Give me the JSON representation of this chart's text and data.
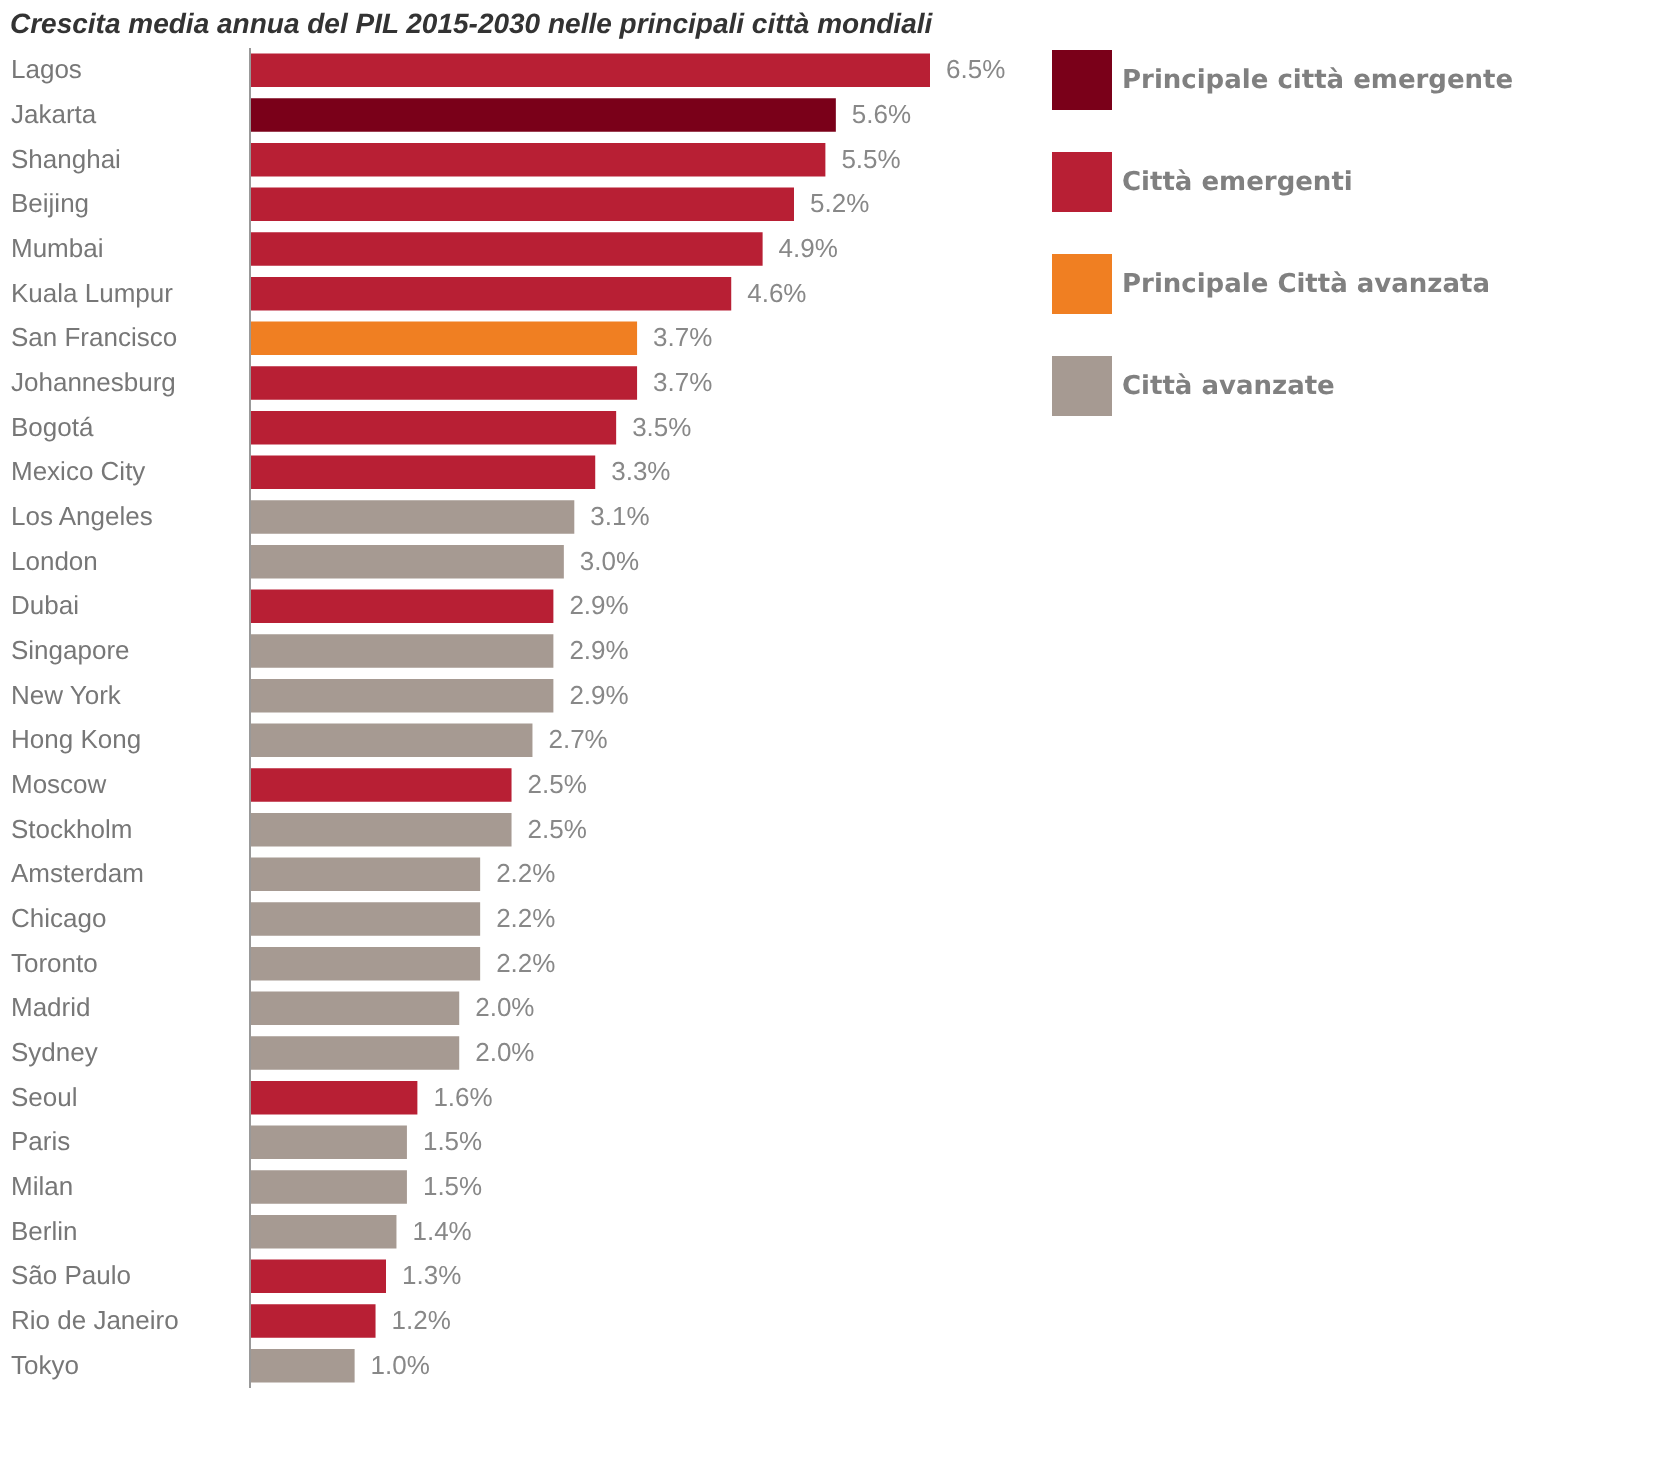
{
  "chart_data": {
    "type": "bar",
    "orientation": "horizontal",
    "title": "Crescita media annua del PIL 2015-2030 nelle principali città mondiali",
    "categories": [
      "Lagos",
      "Jakarta",
      "Shanghai",
      "Beijing",
      "Mumbai",
      "Kuala Lumpur",
      "San Francisco",
      "Johannesburg",
      "Bogotá",
      "Mexico City",
      "Los Angeles",
      "London",
      "Dubai",
      "Singapore",
      "New York",
      "Hong Kong",
      "Moscow",
      "Stockholm",
      "Amsterdam",
      "Chicago",
      "Toronto",
      "Madrid",
      "Sydney",
      "Seoul",
      "Paris",
      "Milan",
      "Berlin",
      "São Paulo",
      "Rio de Janeiro",
      "Tokyo"
    ],
    "series": [
      {
        "name": "Principale città emergente",
        "color": "#7a0019",
        "values": [
          null,
          5.6,
          null,
          null,
          null,
          null,
          null,
          null,
          null,
          null,
          null,
          null,
          null,
          null,
          null,
          null,
          null,
          null,
          null,
          null,
          null,
          null,
          null,
          null,
          null,
          null,
          null,
          null,
          null,
          null
        ],
        "value_labels": [
          null,
          "5.6%",
          null,
          null,
          null,
          null,
          null,
          null,
          null,
          null,
          null,
          null,
          null,
          null,
          null,
          null,
          null,
          null,
          null,
          null,
          null,
          null,
          null,
          null,
          null,
          null,
          null,
          null,
          null,
          null
        ]
      },
      {
        "name": "Città emergenti",
        "color": "#b81f34",
        "values": [
          6.5,
          null,
          5.5,
          5.2,
          4.9,
          4.6,
          null,
          3.7,
          3.5,
          3.3,
          null,
          null,
          2.9,
          null,
          null,
          null,
          2.5,
          null,
          null,
          null,
          null,
          null,
          null,
          1.6,
          null,
          null,
          null,
          1.3,
          1.2,
          null
        ],
        "value_labels": [
          "6.5%",
          null,
          "5.5%",
          "5.2%",
          "4.9%",
          "4.6%",
          null,
          "3.7%",
          "3.5%",
          "3.3%",
          null,
          null,
          "2.9%",
          null,
          null,
          null,
          "2.5%",
          null,
          null,
          null,
          null,
          null,
          null,
          "1.6%",
          null,
          null,
          null,
          "1.3%",
          "1.2%",
          null
        ]
      },
      {
        "name": "Principale Città avanzata",
        "color": "#f07f22",
        "values": [
          null,
          null,
          null,
          null,
          null,
          null,
          3.7,
          null,
          null,
          null,
          null,
          null,
          null,
          null,
          null,
          null,
          null,
          null,
          null,
          null,
          null,
          null,
          null,
          null,
          null,
          null,
          null,
          null,
          null,
          null
        ],
        "value_labels": [
          null,
          null,
          null,
          null,
          null,
          null,
          "3.7%",
          null,
          null,
          null,
          null,
          null,
          null,
          null,
          null,
          null,
          null,
          null,
          null,
          null,
          null,
          null,
          null,
          null,
          null,
          null,
          null,
          null,
          null,
          null
        ]
      },
      {
        "name": "Città avanzate",
        "color": "#a69a92",
        "values": [
          null,
          null,
          null,
          null,
          null,
          null,
          null,
          null,
          null,
          null,
          3.1,
          3.0,
          null,
          2.9,
          2.9,
          2.7,
          null,
          2.5,
          2.2,
          2.2,
          2.2,
          2.0,
          2.0,
          null,
          1.5,
          1.5,
          1.4,
          null,
          null,
          1.0
        ],
        "value_labels": [
          null,
          null,
          null,
          null,
          null,
          null,
          null,
          null,
          null,
          null,
          "3.1%",
          "3.0%",
          null,
          "2.9%",
          "2.9%",
          "2.7%",
          null,
          "2.5%",
          "2.2%",
          "2.2%",
          "2.2%",
          "2.0%",
          "2.0%",
          null,
          "1.5%",
          "1.5%",
          "1.4%",
          null,
          null,
          "1.0%"
        ]
      }
    ],
    "legend": "top right"
  }
}
